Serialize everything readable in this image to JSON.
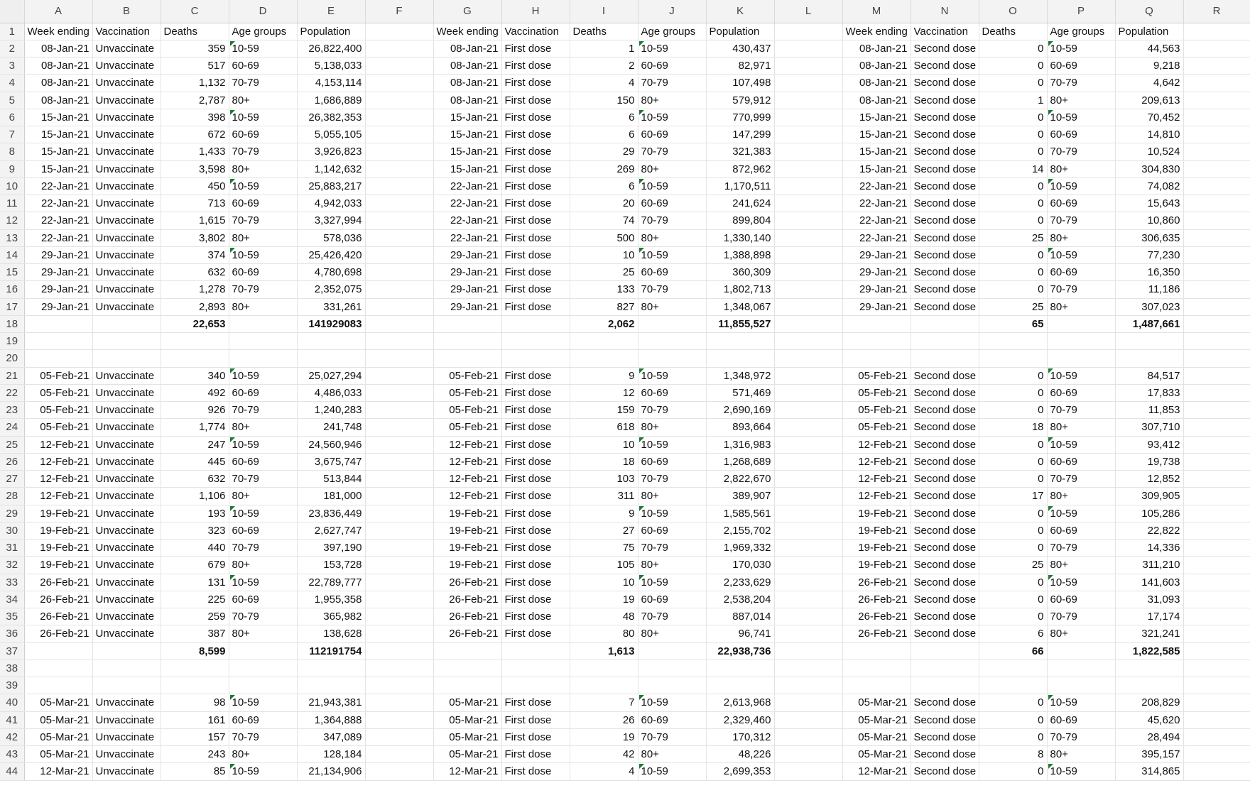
{
  "columns": [
    "A",
    "B",
    "C",
    "D",
    "E",
    "F",
    "G",
    "H",
    "I",
    "J",
    "K",
    "L",
    "M",
    "N",
    "O",
    "P",
    "Q",
    "R"
  ],
  "row_numbers": [
    1,
    2,
    3,
    4,
    5,
    6,
    7,
    8,
    9,
    10,
    11,
    12,
    13,
    14,
    15,
    16,
    17,
    18,
    19,
    20,
    21,
    22,
    23,
    24,
    25,
    26,
    27,
    28,
    29,
    30,
    31,
    32,
    33,
    34,
    35,
    36,
    37,
    38,
    39,
    40,
    41,
    42,
    43,
    44
  ],
  "rows": [
    [
      "Week ending",
      "Vaccination",
      "Deaths",
      "Age groups",
      "Population",
      "",
      "Week ending",
      "Vaccination",
      "Deaths",
      "Age groups",
      "Population",
      "",
      "Week ending",
      "Vaccination",
      "Deaths",
      "Age groups",
      "Population",
      ""
    ],
    [
      "08-Jan-21",
      "Unvaccinate",
      "359",
      "10-59",
      "26,822,400",
      "",
      "08-Jan-21",
      "First dose",
      "1",
      "10-59",
      "430,437",
      "",
      "08-Jan-21",
      "Second dose",
      "0",
      "10-59",
      "44,563",
      ""
    ],
    [
      "08-Jan-21",
      "Unvaccinate",
      "517",
      "60-69",
      "5,138,033",
      "",
      "08-Jan-21",
      "First dose",
      "2",
      "60-69",
      "82,971",
      "",
      "08-Jan-21",
      "Second dose",
      "0",
      "60-69",
      "9,218",
      ""
    ],
    [
      "08-Jan-21",
      "Unvaccinate",
      "1,132",
      "70-79",
      "4,153,114",
      "",
      "08-Jan-21",
      "First dose",
      "4",
      "70-79",
      "107,498",
      "",
      "08-Jan-21",
      "Second dose",
      "0",
      "70-79",
      "4,642",
      ""
    ],
    [
      "08-Jan-21",
      "Unvaccinate",
      "2,787",
      "80+",
      "1,686,889",
      "",
      "08-Jan-21",
      "First dose",
      "150",
      "80+",
      "579,912",
      "",
      "08-Jan-21",
      "Second dose",
      "1",
      "80+",
      "209,613",
      ""
    ],
    [
      "15-Jan-21",
      "Unvaccinate",
      "398",
      "10-59",
      "26,382,353",
      "",
      "15-Jan-21",
      "First dose",
      "6",
      "10-59",
      "770,999",
      "",
      "15-Jan-21",
      "Second dose",
      "0",
      "10-59",
      "70,452",
      ""
    ],
    [
      "15-Jan-21",
      "Unvaccinate",
      "672",
      "60-69",
      "5,055,105",
      "",
      "15-Jan-21",
      "First dose",
      "6",
      "60-69",
      "147,299",
      "",
      "15-Jan-21",
      "Second dose",
      "0",
      "60-69",
      "14,810",
      ""
    ],
    [
      "15-Jan-21",
      "Unvaccinate",
      "1,433",
      "70-79",
      "3,926,823",
      "",
      "15-Jan-21",
      "First dose",
      "29",
      "70-79",
      "321,383",
      "",
      "15-Jan-21",
      "Second dose",
      "0",
      "70-79",
      "10,524",
      ""
    ],
    [
      "15-Jan-21",
      "Unvaccinate",
      "3,598",
      "80+",
      "1,142,632",
      "",
      "15-Jan-21",
      "First dose",
      "269",
      "80+",
      "872,962",
      "",
      "15-Jan-21",
      "Second dose",
      "14",
      "80+",
      "304,830",
      ""
    ],
    [
      "22-Jan-21",
      "Unvaccinate",
      "450",
      "10-59",
      "25,883,217",
      "",
      "22-Jan-21",
      "First dose",
      "6",
      "10-59",
      "1,170,511",
      "",
      "22-Jan-21",
      "Second dose",
      "0",
      "10-59",
      "74,082",
      ""
    ],
    [
      "22-Jan-21",
      "Unvaccinate",
      "713",
      "60-69",
      "4,942,033",
      "",
      "22-Jan-21",
      "First dose",
      "20",
      "60-69",
      "241,624",
      "",
      "22-Jan-21",
      "Second dose",
      "0",
      "60-69",
      "15,643",
      ""
    ],
    [
      "22-Jan-21",
      "Unvaccinate",
      "1,615",
      "70-79",
      "3,327,994",
      "",
      "22-Jan-21",
      "First dose",
      "74",
      "70-79",
      "899,804",
      "",
      "22-Jan-21",
      "Second dose",
      "0",
      "70-79",
      "10,860",
      ""
    ],
    [
      "22-Jan-21",
      "Unvaccinate",
      "3,802",
      "80+",
      "578,036",
      "",
      "22-Jan-21",
      "First dose",
      "500",
      "80+",
      "1,330,140",
      "",
      "22-Jan-21",
      "Second dose",
      "25",
      "80+",
      "306,635",
      ""
    ],
    [
      "29-Jan-21",
      "Unvaccinate",
      "374",
      "10-59",
      "25,426,420",
      "",
      "29-Jan-21",
      "First dose",
      "10",
      "10-59",
      "1,388,898",
      "",
      "29-Jan-21",
      "Second dose",
      "0",
      "10-59",
      "77,230",
      ""
    ],
    [
      "29-Jan-21",
      "Unvaccinate",
      "632",
      "60-69",
      "4,780,698",
      "",
      "29-Jan-21",
      "First dose",
      "25",
      "60-69",
      "360,309",
      "",
      "29-Jan-21",
      "Second dose",
      "0",
      "60-69",
      "16,350",
      ""
    ],
    [
      "29-Jan-21",
      "Unvaccinate",
      "1,278",
      "70-79",
      "2,352,075",
      "",
      "29-Jan-21",
      "First dose",
      "133",
      "70-79",
      "1,802,713",
      "",
      "29-Jan-21",
      "Second dose",
      "0",
      "70-79",
      "11,186",
      ""
    ],
    [
      "29-Jan-21",
      "Unvaccinate",
      "2,893",
      "80+",
      "331,261",
      "",
      "29-Jan-21",
      "First dose",
      "827",
      "80+",
      "1,348,067",
      "",
      "29-Jan-21",
      "Second dose",
      "25",
      "80+",
      "307,023",
      ""
    ],
    [
      "",
      "",
      "22,653",
      "",
      "141929083",
      "",
      "",
      "",
      "2,062",
      "",
      "11,855,527",
      "",
      "",
      "",
      "65",
      "",
      "1,487,661",
      ""
    ],
    [
      "",
      "",
      "",
      "",
      "",
      "",
      "",
      "",
      "",
      "",
      "",
      "",
      "",
      "",
      "",
      "",
      "",
      ""
    ],
    [
      "",
      "",
      "",
      "",
      "",
      "",
      "",
      "",
      "",
      "",
      "",
      "",
      "",
      "",
      "",
      "",
      "",
      ""
    ],
    [
      "05-Feb-21",
      "Unvaccinate",
      "340",
      "10-59",
      "25,027,294",
      "",
      "05-Feb-21",
      "First dose",
      "9",
      "10-59",
      "1,348,972",
      "",
      "05-Feb-21",
      "Second dose",
      "0",
      "10-59",
      "84,517",
      ""
    ],
    [
      "05-Feb-21",
      "Unvaccinate",
      "492",
      "60-69",
      "4,486,033",
      "",
      "05-Feb-21",
      "First dose",
      "12",
      "60-69",
      "571,469",
      "",
      "05-Feb-21",
      "Second dose",
      "0",
      "60-69",
      "17,833",
      ""
    ],
    [
      "05-Feb-21",
      "Unvaccinate",
      "926",
      "70-79",
      "1,240,283",
      "",
      "05-Feb-21",
      "First dose",
      "159",
      "70-79",
      "2,690,169",
      "",
      "05-Feb-21",
      "Second dose",
      "0",
      "70-79",
      "11,853",
      ""
    ],
    [
      "05-Feb-21",
      "Unvaccinate",
      "1,774",
      "80+",
      "241,748",
      "",
      "05-Feb-21",
      "First dose",
      "618",
      "80+",
      "893,664",
      "",
      "05-Feb-21",
      "Second dose",
      "18",
      "80+",
      "307,710",
      ""
    ],
    [
      "12-Feb-21",
      "Unvaccinate",
      "247",
      "10-59",
      "24,560,946",
      "",
      "12-Feb-21",
      "First dose",
      "10",
      "10-59",
      "1,316,983",
      "",
      "12-Feb-21",
      "Second dose",
      "0",
      "10-59",
      "93,412",
      ""
    ],
    [
      "12-Feb-21",
      "Unvaccinate",
      "445",
      "60-69",
      "3,675,747",
      "",
      "12-Feb-21",
      "First dose",
      "18",
      "60-69",
      "1,268,689",
      "",
      "12-Feb-21",
      "Second dose",
      "0",
      "60-69",
      "19,738",
      ""
    ],
    [
      "12-Feb-21",
      "Unvaccinate",
      "632",
      "70-79",
      "513,844",
      "",
      "12-Feb-21",
      "First dose",
      "103",
      "70-79",
      "2,822,670",
      "",
      "12-Feb-21",
      "Second dose",
      "0",
      "70-79",
      "12,852",
      ""
    ],
    [
      "12-Feb-21",
      "Unvaccinate",
      "1,106",
      "80+",
      "181,000",
      "",
      "12-Feb-21",
      "First dose",
      "311",
      "80+",
      "389,907",
      "",
      "12-Feb-21",
      "Second dose",
      "17",
      "80+",
      "309,905",
      ""
    ],
    [
      "19-Feb-21",
      "Unvaccinate",
      "193",
      "10-59",
      "23,836,449",
      "",
      "19-Feb-21",
      "First dose",
      "9",
      "10-59",
      "1,585,561",
      "",
      "19-Feb-21",
      "Second dose",
      "0",
      "10-59",
      "105,286",
      ""
    ],
    [
      "19-Feb-21",
      "Unvaccinate",
      "323",
      "60-69",
      "2,627,747",
      "",
      "19-Feb-21",
      "First dose",
      "27",
      "60-69",
      "2,155,702",
      "",
      "19-Feb-21",
      "Second dose",
      "0",
      "60-69",
      "22,822",
      ""
    ],
    [
      "19-Feb-21",
      "Unvaccinate",
      "440",
      "70-79",
      "397,190",
      "",
      "19-Feb-21",
      "First dose",
      "75",
      "70-79",
      "1,969,332",
      "",
      "19-Feb-21",
      "Second dose",
      "0",
      "70-79",
      "14,336",
      ""
    ],
    [
      "19-Feb-21",
      "Unvaccinate",
      "679",
      "80+",
      "153,728",
      "",
      "19-Feb-21",
      "First dose",
      "105",
      "80+",
      "170,030",
      "",
      "19-Feb-21",
      "Second dose",
      "25",
      "80+",
      "311,210",
      ""
    ],
    [
      "26-Feb-21",
      "Unvaccinate",
      "131",
      "10-59",
      "22,789,777",
      "",
      "26-Feb-21",
      "First dose",
      "10",
      "10-59",
      "2,233,629",
      "",
      "26-Feb-21",
      "Second dose",
      "0",
      "10-59",
      "141,603",
      ""
    ],
    [
      "26-Feb-21",
      "Unvaccinate",
      "225",
      "60-69",
      "1,955,358",
      "",
      "26-Feb-21",
      "First dose",
      "19",
      "60-69",
      "2,538,204",
      "",
      "26-Feb-21",
      "Second dose",
      "0",
      "60-69",
      "31,093",
      ""
    ],
    [
      "26-Feb-21",
      "Unvaccinate",
      "259",
      "70-79",
      "365,982",
      "",
      "26-Feb-21",
      "First dose",
      "48",
      "70-79",
      "887,014",
      "",
      "26-Feb-21",
      "Second dose",
      "0",
      "70-79",
      "17,174",
      ""
    ],
    [
      "26-Feb-21",
      "Unvaccinate",
      "387",
      "80+",
      "138,628",
      "",
      "26-Feb-21",
      "First dose",
      "80",
      "80+",
      "96,741",
      "",
      "26-Feb-21",
      "Second dose",
      "6",
      "80+",
      "321,241",
      ""
    ],
    [
      "",
      "",
      "8,599",
      "",
      "112191754",
      "",
      "",
      "",
      "1,613",
      "",
      "22,938,736",
      "",
      "",
      "",
      "66",
      "",
      "1,822,585",
      ""
    ],
    [
      "",
      "",
      "",
      "",
      "",
      "",
      "",
      "",
      "",
      "",
      "",
      "",
      "",
      "",
      "",
      "",
      "",
      ""
    ],
    [
      "",
      "",
      "",
      "",
      "",
      "",
      "",
      "",
      "",
      "",
      "",
      "",
      "",
      "",
      "",
      "",
      "",
      ""
    ],
    [
      "05-Mar-21",
      "Unvaccinate",
      "98",
      "10-59",
      "21,943,381",
      "",
      "05-Mar-21",
      "First dose",
      "7",
      "10-59",
      "2,613,968",
      "",
      "05-Mar-21",
      "Second dose",
      "0",
      "10-59",
      "208,829",
      ""
    ],
    [
      "05-Mar-21",
      "Unvaccinate",
      "161",
      "60-69",
      "1,364,888",
      "",
      "05-Mar-21",
      "First dose",
      "26",
      "60-69",
      "2,329,460",
      "",
      "05-Mar-21",
      "Second dose",
      "0",
      "60-69",
      "45,620",
      ""
    ],
    [
      "05-Mar-21",
      "Unvaccinate",
      "157",
      "70-79",
      "347,089",
      "",
      "05-Mar-21",
      "First dose",
      "19",
      "70-79",
      "170,312",
      "",
      "05-Mar-21",
      "Second dose",
      "0",
      "70-79",
      "28,494",
      ""
    ],
    [
      "05-Mar-21",
      "Unvaccinate",
      "243",
      "80+",
      "128,184",
      "",
      "05-Mar-21",
      "First dose",
      "42",
      "80+",
      "48,226",
      "",
      "05-Mar-21",
      "Second dose",
      "8",
      "80+",
      "395,157",
      ""
    ],
    [
      "12-Mar-21",
      "Unvaccinate",
      "85",
      "10-59",
      "21,134,906",
      "",
      "12-Mar-21",
      "First dose",
      "4",
      "10-59",
      "2,699,353",
      "",
      "12-Mar-21",
      "Second dose",
      "0",
      "10-59",
      "314,865",
      ""
    ]
  ]
}
